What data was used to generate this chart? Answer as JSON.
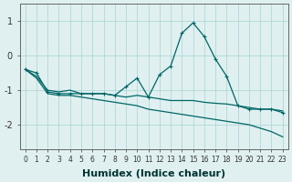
{
  "x": [
    0,
    1,
    2,
    3,
    4,
    5,
    6,
    7,
    8,
    9,
    10,
    11,
    12,
    13,
    14,
    15,
    16,
    17,
    18,
    19,
    20,
    21,
    22,
    23
  ],
  "line1": [
    -0.4,
    -0.5,
    -1.05,
    -1.1,
    -1.1,
    -1.1,
    -1.1,
    -1.1,
    -1.15,
    -0.9,
    -0.65,
    -1.2,
    -0.55,
    -0.3,
    0.65,
    0.95,
    0.55,
    -0.1,
    -0.6,
    -1.45,
    -1.55,
    -1.55,
    -1.55,
    -1.65
  ],
  "line2": [
    -0.4,
    -0.6,
    -1.0,
    -1.05,
    -1.0,
    -1.1,
    -1.1,
    -1.1,
    -1.15,
    -1.2,
    -1.15,
    -1.2,
    -1.25,
    -1.3,
    -1.3,
    -1.3,
    -1.35,
    -1.38,
    -1.4,
    -1.45,
    -1.5,
    -1.55,
    -1.55,
    -1.6
  ],
  "line3": [
    -0.4,
    -0.65,
    -1.1,
    -1.15,
    -1.15,
    -1.2,
    -1.25,
    -1.3,
    -1.35,
    -1.4,
    -1.45,
    -1.55,
    -1.6,
    -1.65,
    -1.7,
    -1.75,
    -1.8,
    -1.85,
    -1.9,
    -1.95,
    -2.0,
    -2.1,
    -2.2,
    -2.35
  ],
  "bg_color": "#e0f0f0",
  "line_color": "#006666",
  "grid_color": "#b0d8d8",
  "xlabel": "Humidex (Indice chaleur)",
  "xlabel_fontsize": 8,
  "ylabel_ticks": [
    1,
    0,
    -1,
    -2
  ],
  "xlim": [
    -0.5,
    23.5
  ],
  "ylim": [
    -2.7,
    1.5
  ]
}
